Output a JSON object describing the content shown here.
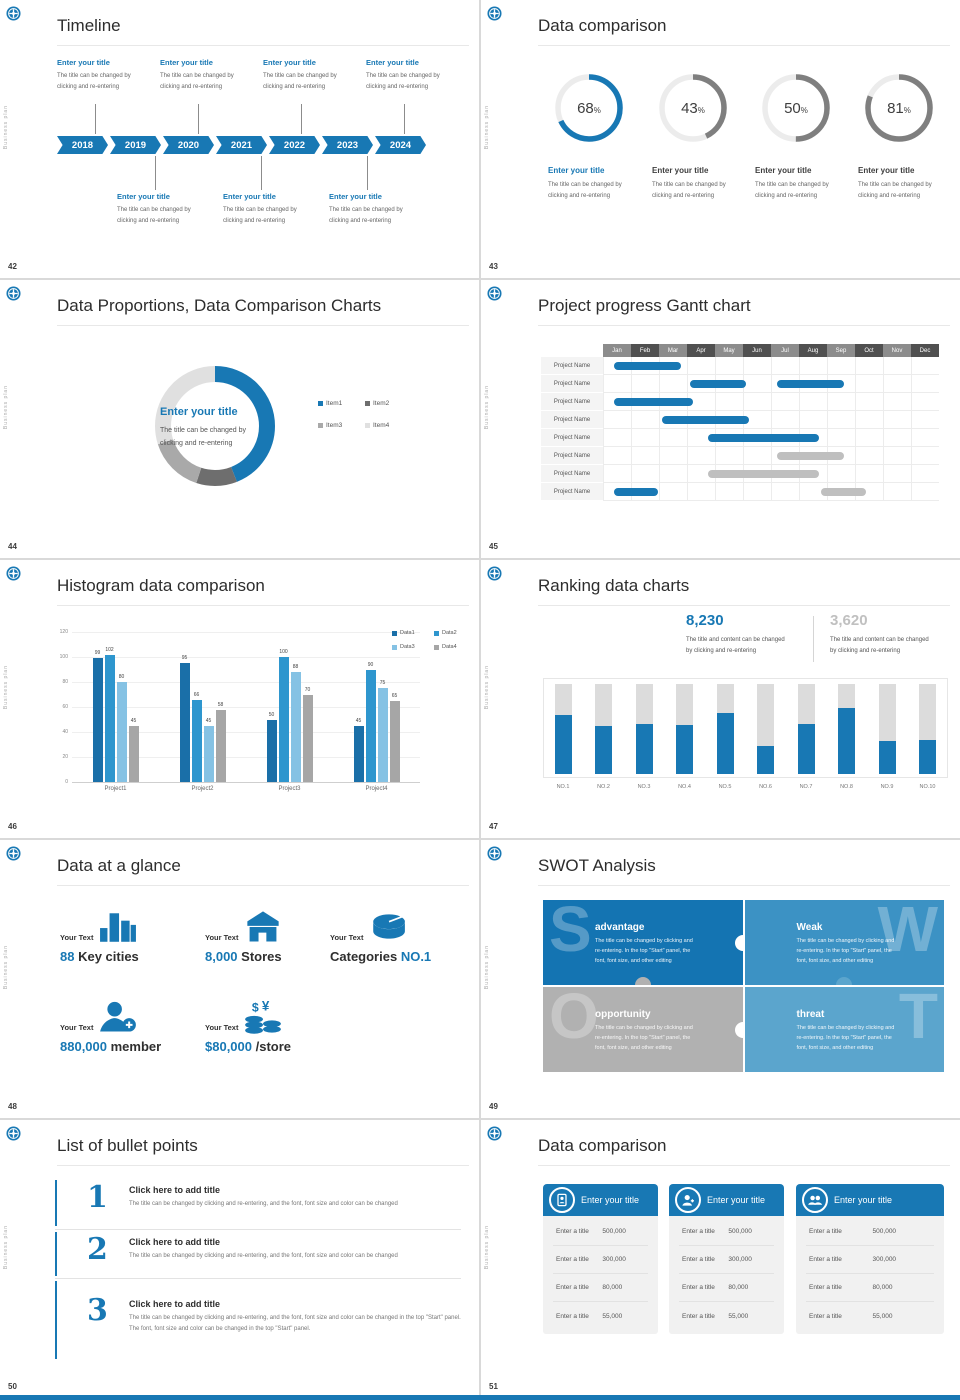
{
  "page": {
    "background": "#d9d9d9",
    "accent": "#1878b4",
    "bottom_bar_color": "#1878b4"
  },
  "common": {
    "sidebar_text": "Business plan",
    "milestone_title": "Enter your title",
    "milestone_desc_l1": "The title can be changed by",
    "milestone_desc_l2": "clicking and re-entering"
  },
  "slides": {
    "timeline": {
      "page_num": "42",
      "title": "Timeline",
      "years": [
        "2018",
        "2019",
        "2020",
        "2021",
        "2022",
        "2023",
        "2024"
      ],
      "top_milestone_count": 4,
      "bottom_milestone_count": 3
    },
    "gauges": {
      "page_num": "43",
      "title": "Data comparison",
      "track_color": "#ececec",
      "desc_l1": "The title can be changed by",
      "desc_l2": "clicking and re-entering",
      "items": [
        {
          "percent": 68,
          "arc_color": "#1878b4",
          "title": "Enter your title",
          "title_color": "#1878b4"
        },
        {
          "percent": 43,
          "arc_color": "#7f7f7f",
          "title": "Enter your title",
          "title_color": "#3f3f3f"
        },
        {
          "percent": 50,
          "arc_color": "#7f7f7f",
          "title": "Enter your title",
          "title_color": "#3f3f3f"
        },
        {
          "percent": 81,
          "arc_color": "#7f7f7f",
          "title": "Enter your title",
          "title_color": "#3f3f3f"
        }
      ],
      "chart_data": {
        "type": "pie",
        "values": [
          68,
          43,
          50,
          81
        ],
        "labels": [
          "Enter your title",
          "Enter your title",
          "Enter your title",
          "Enter your title"
        ]
      }
    },
    "donut": {
      "page_num": "44",
      "title": "Data Proportions, Data Comparison Charts",
      "center_title": "Enter your title",
      "center_desc_l1": "The title can be changed by",
      "center_desc_l2": "clicking and re-entering",
      "chart_data": {
        "type": "pie",
        "labels": [
          "Item1",
          "Item2",
          "Item3",
          "Item4"
        ],
        "values": [
          44,
          11,
          15,
          30
        ],
        "colors": [
          "#1878b4",
          "#6e6e6e",
          "#a9a9a9",
          "#e0e0e0"
        ],
        "legend_position": "right"
      }
    },
    "gantt": {
      "page_num": "45",
      "title": "Project progress Gantt chart",
      "months": [
        "Jan",
        "Feb",
        "Mar",
        "Apr",
        "May",
        "Jun",
        "Jul",
        "Aug",
        "Sep",
        "Oct",
        "Nov",
        "Dec"
      ],
      "header_colors": [
        "#8c8c8c",
        "#505050"
      ],
      "row_label": "Project Name",
      "bar_colors": {
        "done": "#1878b4",
        "plan": "#bfbfbf"
      },
      "rows": [
        [
          {
            "s": 0.4,
            "e": 2.8,
            "t": "done"
          }
        ],
        [
          {
            "s": 3.1,
            "e": 5.1,
            "t": "done"
          },
          {
            "s": 6.2,
            "e": 8.6,
            "t": "done"
          }
        ],
        [
          {
            "s": 0.4,
            "e": 3.2,
            "t": "done"
          }
        ],
        [
          {
            "s": 2.1,
            "e": 5.2,
            "t": "done"
          }
        ],
        [
          {
            "s": 3.75,
            "e": 7.7,
            "t": "done"
          }
        ],
        [
          {
            "s": 6.2,
            "e": 8.6,
            "t": "plan"
          }
        ],
        [
          {
            "s": 3.75,
            "e": 7.7,
            "t": "plan"
          }
        ],
        [
          {
            "s": 0.4,
            "e": 1.95,
            "t": "done"
          },
          {
            "s": 7.8,
            "e": 9.4,
            "t": "plan"
          }
        ]
      ]
    },
    "histogram": {
      "page_num": "46",
      "title": "Histogram data comparison",
      "chart_data": {
        "type": "bar",
        "categories": [
          "Project1",
          "Project2",
          "Project3",
          "Project4"
        ],
        "series": [
          {
            "name": "Data1",
            "color": "#1a6fa8",
            "values": [
              99,
              95,
              50,
              45
            ]
          },
          {
            "name": "Data2",
            "color": "#2e96ce",
            "values": [
              102,
              66,
              100,
              90
            ]
          },
          {
            "name": "Data3",
            "color": "#85c2e4",
            "values": [
              80,
              45,
              88,
              75
            ]
          },
          {
            "name": "Data4",
            "color": "#a6a6a6",
            "values": [
              45,
              58,
              70,
              65
            ]
          }
        ],
        "ylim": [
          0,
          120
        ],
        "yticks": [
          0,
          20,
          40,
          60,
          80,
          100,
          120
        ],
        "grid": true,
        "legend_position": "top-right"
      }
    },
    "ranking": {
      "page_num": "47",
      "title": "Ranking data charts",
      "stats": [
        {
          "value": "8,230",
          "color": "#1878b4",
          "desc_l1": "The title and content can be changed",
          "desc_l2": "by clicking and re-entering"
        },
        {
          "value": "3,620",
          "color": "#c0c0c0",
          "desc_l1": "The title and content can be changed",
          "desc_l2": "by clicking and re-entering"
        }
      ],
      "chart_data": {
        "type": "bar",
        "categories": [
          "NO.1",
          "NO.2",
          "NO.3",
          "NO.4",
          "NO.5",
          "NO.6",
          "NO.7",
          "NO.8",
          "NO.9",
          "NO.10"
        ],
        "values": [
          66,
          53,
          56,
          54,
          68,
          31,
          55,
          73,
          37,
          38
        ],
        "ylim": [
          0,
          100
        ],
        "bar_color": "#1878b4",
        "track_color": "#dcdcdc"
      }
    },
    "glance": {
      "page_num": "48",
      "title": "Data at a glance",
      "items": [
        {
          "label": "Your Text",
          "icon": "city-icon",
          "parts": [
            {
              "text": "88 ",
              "accent": true
            },
            {
              "text": "Key cities",
              "accent": false
            }
          ]
        },
        {
          "label": "Your Text",
          "icon": "store-icon",
          "parts": [
            {
              "text": "8,000 ",
              "accent": true
            },
            {
              "text": "Stores",
              "accent": false
            }
          ]
        },
        {
          "label": "Your Text",
          "icon": "pie-icon",
          "parts": [
            {
              "text": "Categories ",
              "accent": false
            },
            {
              "text": "NO.1",
              "accent": true
            }
          ]
        },
        {
          "label": "Your Text",
          "icon": "member-add-icon",
          "parts": [
            {
              "text": "880,000 ",
              "accent": true
            },
            {
              "text": "member",
              "accent": false
            }
          ]
        },
        {
          "label": "Your Text",
          "icon": "coins-icon",
          "parts": [
            {
              "text": "$80,000 ",
              "accent": true
            },
            {
              "text": "/store",
              "accent": false
            }
          ]
        }
      ]
    },
    "swot": {
      "page_num": "49",
      "title": "SWOT Analysis",
      "desc_l1": "The title can be changed by clicking and",
      "desc_l2": "re-entering. In the top \"Start\" panel, the",
      "desc_l3": "font, font size, and other editing",
      "blocks": [
        {
          "letter": "S",
          "heading": "advantage",
          "bg": "#1474b2"
        },
        {
          "letter": "W",
          "heading": "Weak",
          "bg": "#3c92c4"
        },
        {
          "letter": "O",
          "heading": "opportunity",
          "bg": "#b1b1b1"
        },
        {
          "letter": "T",
          "heading": "threat",
          "bg": "#5ba5cd"
        }
      ]
    },
    "bullets": {
      "page_num": "50",
      "title": "List of bullet points",
      "items": [
        {
          "num": "1",
          "heading": "Click here to add title",
          "desc": "The title can be changed by clicking and re-entering, and the font, font size and color can be changed"
        },
        {
          "num": "2",
          "heading": "Click here to add title",
          "desc": "The title can be changed by clicking and re-entering, and the font, font size and color can be changed"
        },
        {
          "num": "3",
          "heading": "Click here to add title",
          "desc": "The title can be changed by clicking and re-entering, and the font, font size and color can be changed in the top \"Start\" panel. The font, font size and color can be changed in the top \"Start\" panel."
        }
      ]
    },
    "cards": {
      "page_num": "51",
      "title": "Data comparison",
      "cards": [
        {
          "icon": "id-card-icon",
          "header": "Enter your title",
          "rows": [
            {
              "label": "Enter a title",
              "value": "500,000"
            },
            {
              "label": "Enter a title",
              "value": "300,000"
            },
            {
              "label": "Enter a title",
              "value": "80,000"
            },
            {
              "label": "Enter a title",
              "value": "55,000"
            }
          ]
        },
        {
          "icon": "person-add-icon",
          "header": "Enter your title",
          "rows": [
            {
              "label": "Enter a title",
              "value": "500,000"
            },
            {
              "label": "Enter a title",
              "value": "300,000"
            },
            {
              "label": "Enter a title",
              "value": "80,000"
            },
            {
              "label": "Enter a title",
              "value": "55,000"
            }
          ]
        },
        {
          "icon": "group-icon",
          "header": "Enter your title",
          "rows": [
            {
              "label": "Enter a title",
              "value": "500,000"
            },
            {
              "label": "Enter a title",
              "value": "300,000"
            },
            {
              "label": "Enter a title",
              "value": "80,000"
            },
            {
              "label": "Enter a title",
              "value": "55,000"
            }
          ]
        }
      ]
    }
  }
}
